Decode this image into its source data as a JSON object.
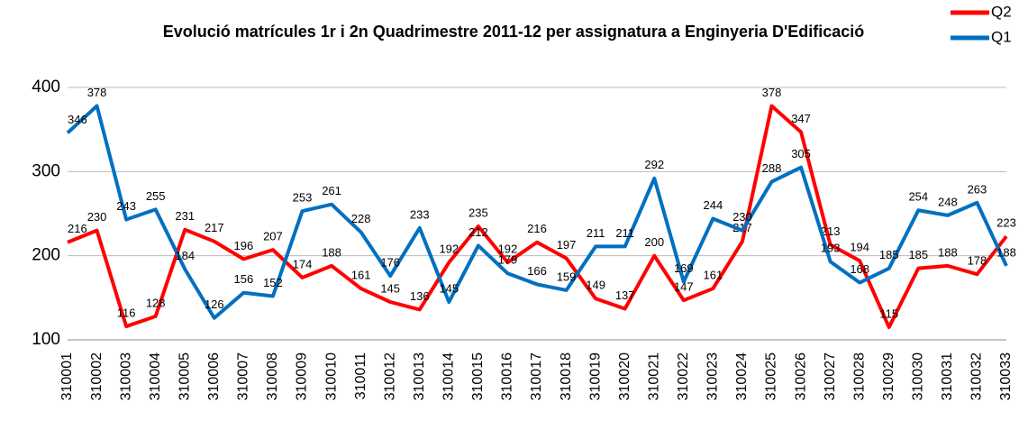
{
  "chart_data": {
    "type": "line",
    "title": "Evolució matrícules 1r i 2n Quadrimestre 2011-12 per assignatura a Enginyeria D'Edificació",
    "categories": [
      "310001",
      "310002",
      "310003",
      "310004",
      "310005",
      "310006",
      "310007",
      "310008",
      "310009",
      "310010",
      "310011",
      "310012",
      "310013",
      "310014",
      "310015",
      "310016",
      "310017",
      "310018",
      "310019",
      "310020",
      "310021",
      "310022",
      "310023",
      "310024",
      "310025",
      "310026",
      "310027",
      "310028",
      "310029",
      "310030",
      "310031",
      "310032",
      "310033"
    ],
    "series": [
      {
        "name": "Q2",
        "color": "#ff0000",
        "values": [
          216,
          230,
          116,
          128,
          231,
          217,
          196,
          207,
          174,
          188,
          161,
          145,
          136,
          192,
          235,
          192,
          216,
          197,
          149,
          137,
          200,
          147,
          161,
          217,
          378,
          347,
          213,
          194,
          115,
          185,
          188,
          178,
          223
        ]
      },
      {
        "name": "Q1",
        "color": "#0070c0",
        "values": [
          346,
          378,
          243,
          255,
          184,
          126,
          156,
          152,
          253,
          261,
          228,
          176,
          233,
          145,
          212,
          179,
          166,
          159,
          211,
          211,
          292,
          169,
          244,
          230,
          288,
          305,
          193,
          168,
          185,
          254,
          248,
          263,
          188
        ]
      }
    ],
    "ylim": [
      100,
      400
    ],
    "yticks": [
      100,
      200,
      300,
      400
    ],
    "grid": true,
    "legend": "top-right"
  }
}
